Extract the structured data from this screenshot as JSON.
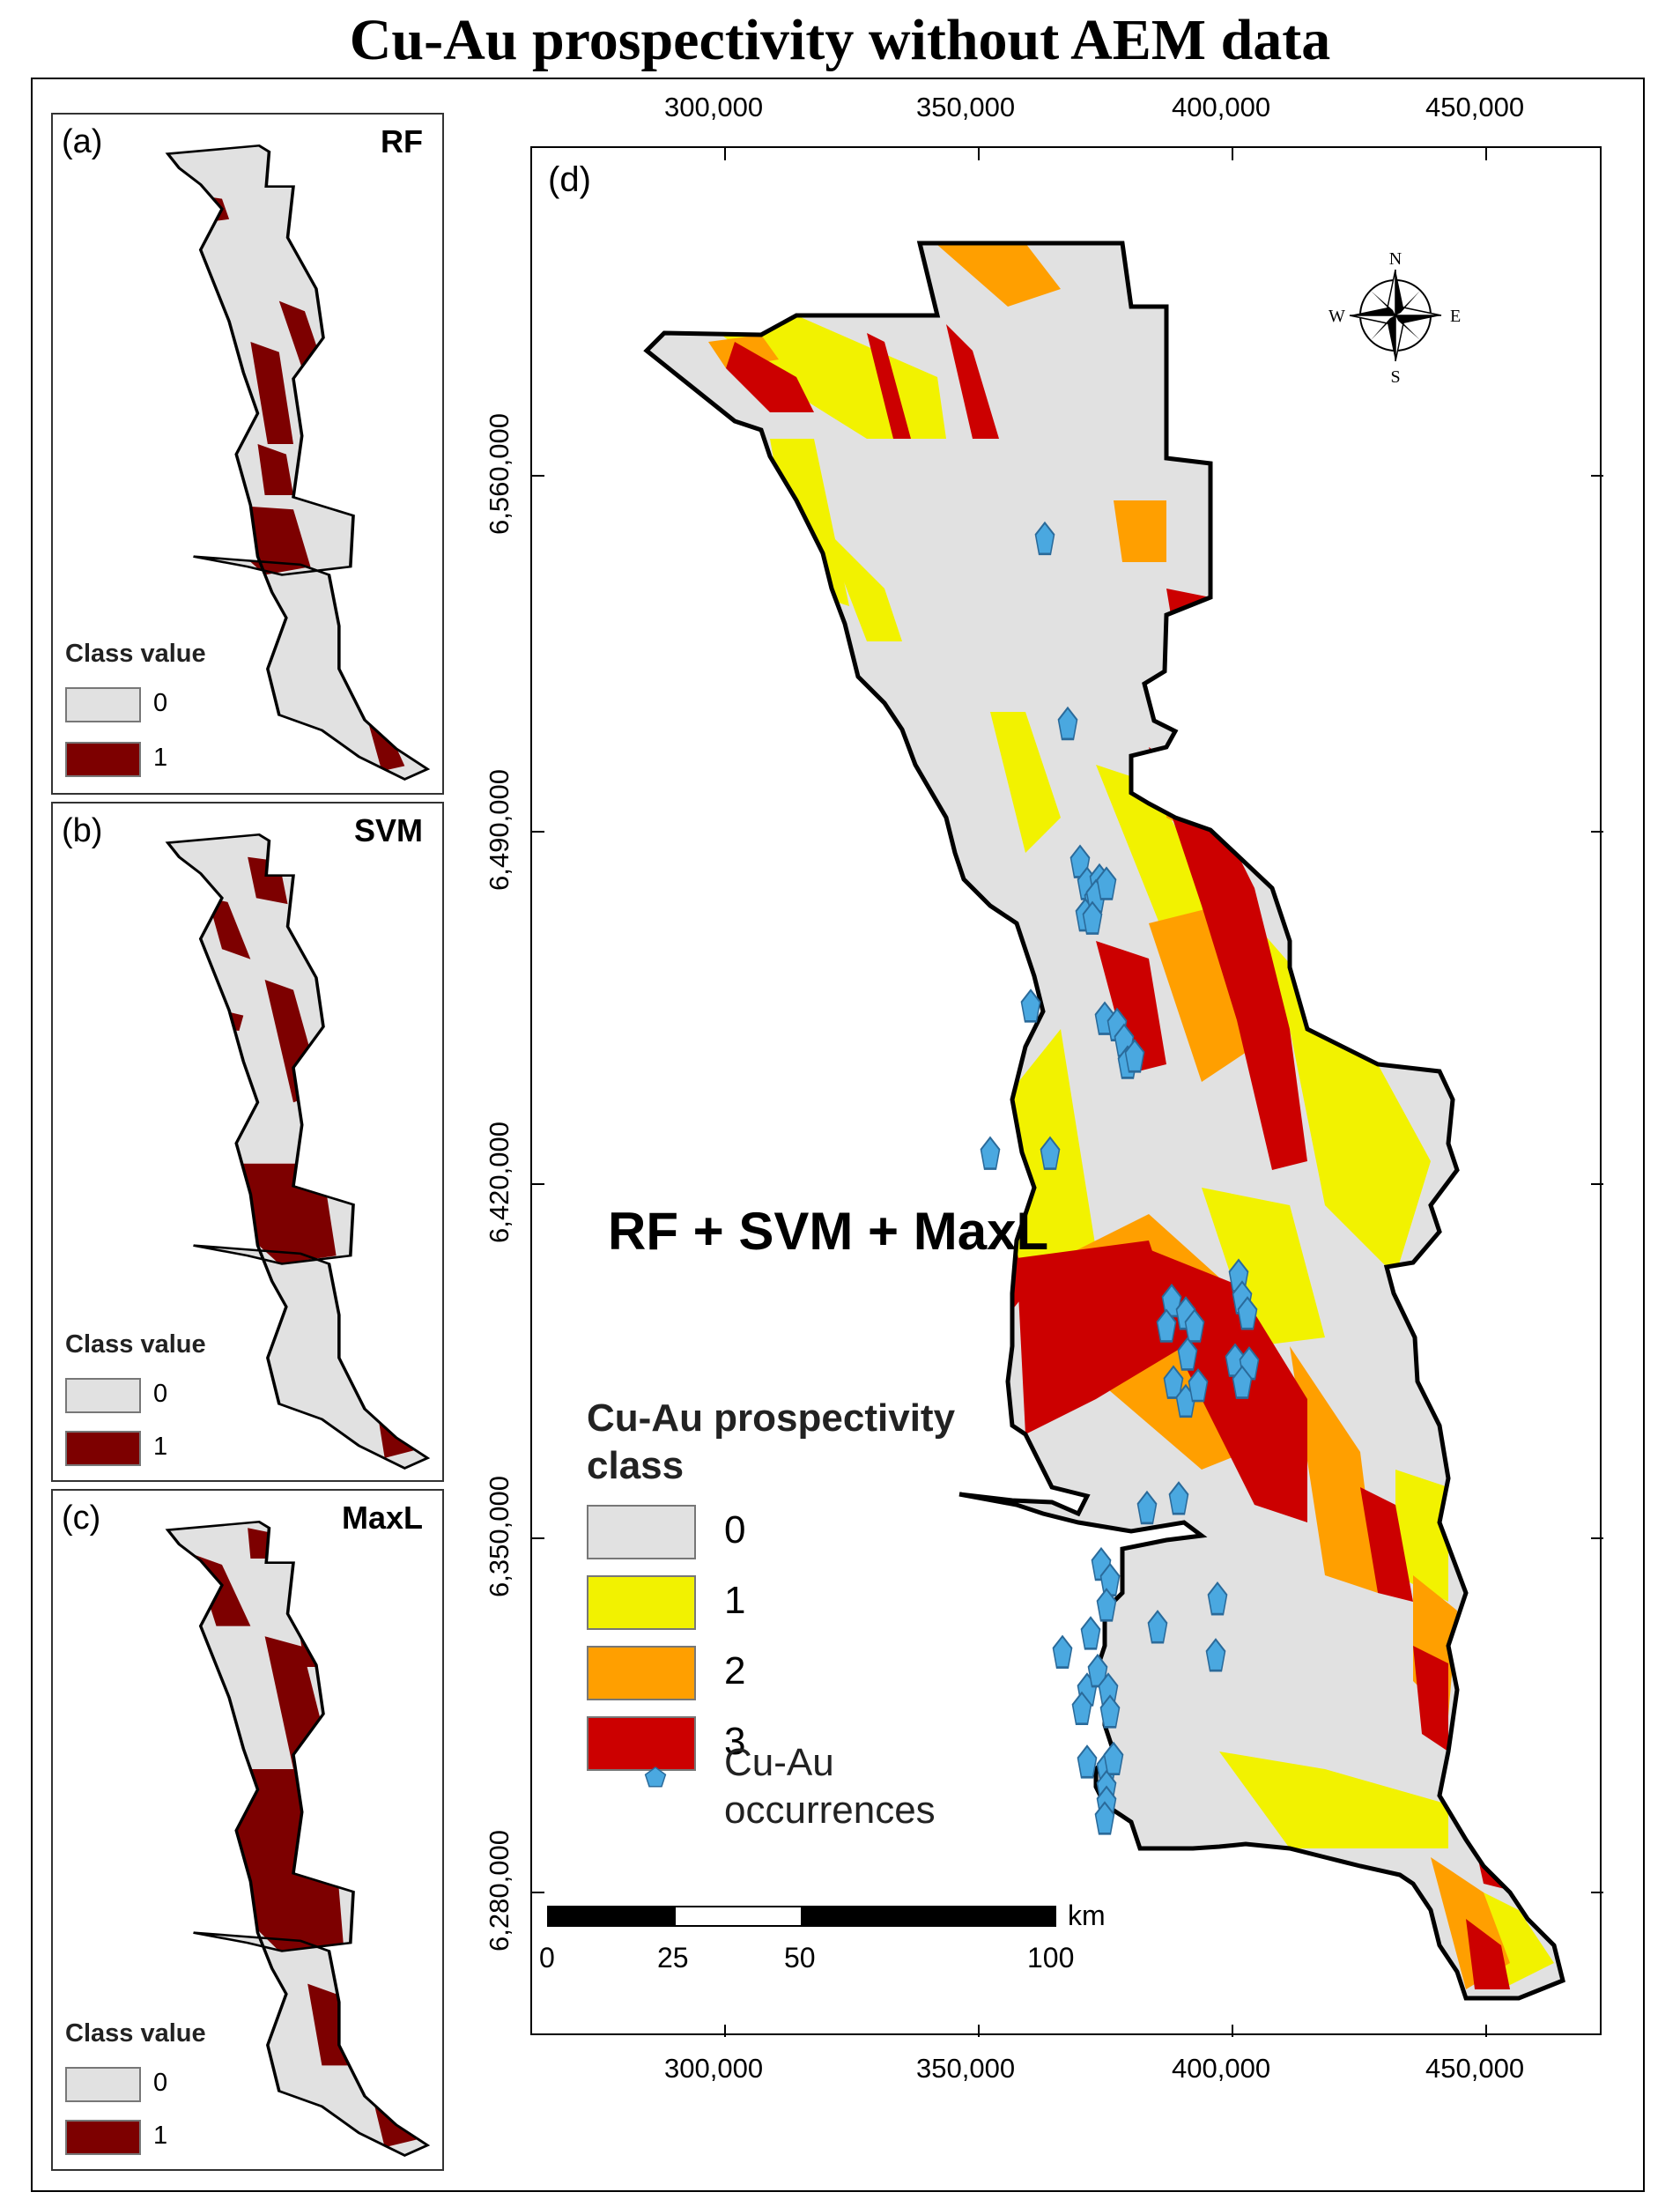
{
  "title": "Cu-Au prospectivity without AEM data",
  "colors": {
    "class0": "#e1e1e1",
    "class1": "#f2f200",
    "class2": "#ff9f00",
    "class3": "#cc0000",
    "binary1": "#7d0000",
    "occurrence": "#4aa8e0"
  },
  "panels": [
    {
      "label": "(a)",
      "name": "RF",
      "legend_title": "Class value",
      "legend": [
        "0",
        "1"
      ]
    },
    {
      "label": "(b)",
      "name": "SVM",
      "legend_title": "Class value",
      "legend": [
        "0",
        "1"
      ]
    },
    {
      "label": "(c)",
      "name": "MaxL",
      "legend_title": "Class value",
      "legend": [
        "0",
        "1"
      ]
    }
  ],
  "main_map": {
    "label": "(d)",
    "combination": "RF + SVM + MaxL",
    "x_ticks": [
      "300,000",
      "350,000",
      "400,000",
      "450,000"
    ],
    "y_ticks": [
      "6,560,000",
      "6,490,000",
      "6,420,000",
      "6,350,000",
      "6,280,000"
    ],
    "north_arrow": {
      "icon": "compass-rose-icon",
      "N": "N",
      "S": "S",
      "E": "E",
      "W": "W"
    },
    "legend_title": "Cu-Au prospectivity class",
    "legend": [
      "0",
      "1",
      "2",
      "3"
    ],
    "occurrence_label": "Cu-Au occurrences",
    "scale_bar": {
      "unit": "km",
      "labels": [
        "0",
        "25",
        "50",
        "100"
      ]
    }
  }
}
